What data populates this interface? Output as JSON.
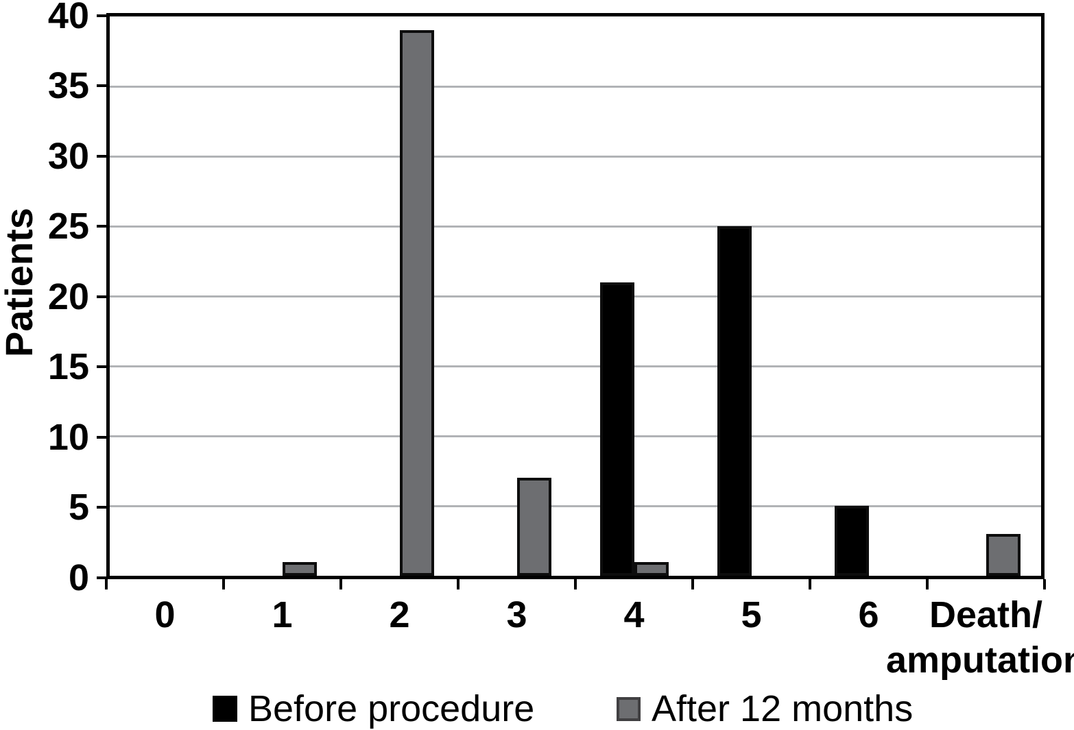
{
  "chart_data": {
    "type": "bar",
    "title": "",
    "xlabel": "",
    "ylabel": "Patients",
    "ylim": [
      0,
      40
    ],
    "ytick_step": 5,
    "grid": true,
    "legend_position": "bottom",
    "categories": [
      "0",
      "1",
      "2",
      "3",
      "4",
      "5",
      "6",
      "Death/amputation"
    ],
    "series": [
      {
        "name": "Before procedure",
        "color": "#000000",
        "values": [
          0,
          0,
          0,
          0,
          21,
          25,
          5,
          0
        ]
      },
      {
        "name": "After 12 months",
        "color": "#6d6e71",
        "values": [
          0,
          1,
          39,
          7,
          1,
          0,
          0,
          3
        ]
      }
    ]
  },
  "colors": {
    "bar_border": "#0d0d0d",
    "gridline": "#b1b3b6",
    "axis": "#000000",
    "background": "#ffffff"
  }
}
